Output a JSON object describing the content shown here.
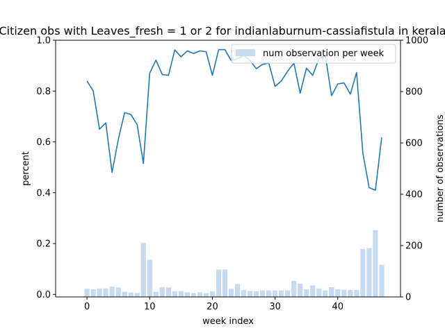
{
  "chart_data": {
    "type": "line",
    "title": "Citizen obs with Leaves_fresh = 1 or 2 for indianlaburnum-cassiafistula in kerala",
    "xlabel": "week index",
    "ylabel": "percent",
    "y2label": "number of observations",
    "xlim": [
      -5,
      50
    ],
    "ylim": [
      -0.01,
      1.0
    ],
    "y2lim": [
      0,
      1000
    ],
    "xticks": [
      0,
      10,
      20,
      30,
      40
    ],
    "yticks": [
      0.0,
      0.2,
      0.4,
      0.6,
      0.8,
      1.0
    ],
    "ytick_labels": [
      "0.0",
      "0.2",
      "0.4",
      "0.6",
      "0.8",
      "1.0"
    ],
    "y2ticks": [
      0,
      200,
      400,
      600,
      800,
      1000
    ],
    "legend": {
      "placement": "top-right",
      "entries": [
        "num observation per week"
      ]
    },
    "colors": {
      "line": "#1f77b4",
      "bar": "#c6dbef"
    },
    "grid": false,
    "x": [
      0,
      1,
      2,
      3,
      4,
      5,
      6,
      7,
      8,
      9,
      10,
      11,
      12,
      13,
      14,
      15,
      16,
      17,
      18,
      19,
      20,
      21,
      22,
      23,
      24,
      25,
      26,
      27,
      28,
      29,
      30,
      31,
      32,
      33,
      34,
      35,
      36,
      37,
      38,
      39,
      40,
      41,
      42,
      43,
      44,
      45,
      46,
      47
    ],
    "series": [
      {
        "axis": "left",
        "kind": "line",
        "values": [
          0.84,
          0.8,
          0.65,
          0.675,
          0.48,
          0.61,
          0.715,
          0.708,
          0.668,
          0.515,
          0.87,
          0.922,
          0.865,
          0.862,
          0.962,
          0.935,
          0.958,
          0.948,
          0.958,
          0.955,
          0.862,
          0.963,
          0.963,
          0.92,
          0.927,
          0.94,
          0.92,
          0.888,
          0.905,
          0.91,
          0.818,
          0.84,
          0.878,
          0.91,
          0.792,
          0.89,
          0.862,
          0.928,
          0.942,
          0.782,
          0.828,
          0.832,
          0.788,
          0.873,
          0.555,
          0.42,
          0.41,
          0.618
        ]
      },
      {
        "name": "num observation per week",
        "axis": "right",
        "kind": "bar",
        "values": [
          32,
          30,
          33,
          33,
          40,
          37,
          20,
          17,
          15,
          211,
          145,
          20,
          38,
          37,
          22,
          23,
          18,
          15,
          18,
          15,
          22,
          107,
          107,
          32,
          50,
          27,
          23,
          22,
          25,
          25,
          25,
          25,
          25,
          62,
          52,
          30,
          45,
          33,
          25,
          38,
          30,
          28,
          27,
          27,
          187,
          190,
          260,
          125
        ]
      }
    ]
  }
}
